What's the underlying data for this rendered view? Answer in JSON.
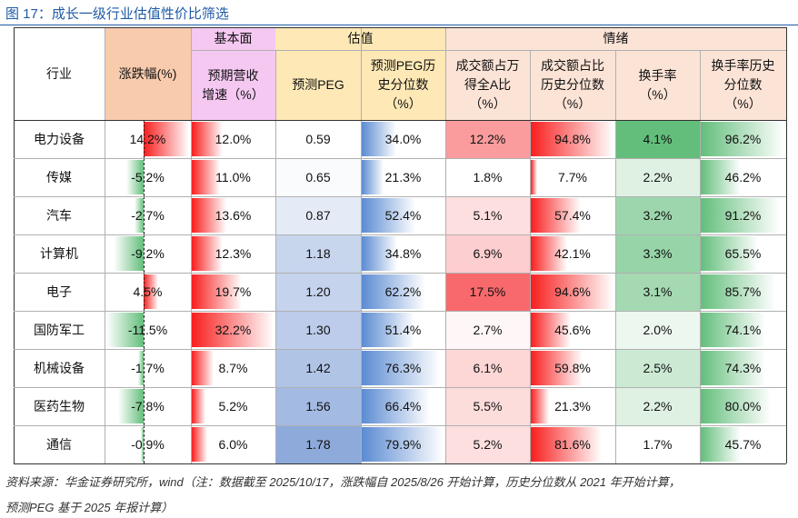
{
  "header": {
    "title": "图 17：成长一级行业估值性价比筛选"
  },
  "table": {
    "groups": [
      "基本面",
      "估值",
      "情绪"
    ],
    "columns": [
      [
        "行业"
      ],
      [
        "涨跌幅(%)"
      ],
      [
        "预期营收",
        "增速（%）"
      ],
      [
        "预测PEG"
      ],
      [
        "预测PEG历",
        "史分位数",
        "（%）"
      ],
      [
        "成交额占万",
        "得全A比",
        "（%）"
      ],
      [
        "成交额占比",
        "历史分位数",
        "（%）"
      ],
      [
        "换手率",
        "（%）"
      ],
      [
        "换手率历史",
        "分位数",
        "（%）"
      ]
    ],
    "rows": [
      [
        "电力设备",
        "14.2%",
        "12.0%",
        "0.59",
        "34.0%",
        "12.2%",
        "94.8%",
        "4.1%",
        "96.2%"
      ],
      [
        "传媒",
        "-5.2%",
        "11.0%",
        "0.65",
        "21.3%",
        "1.8%",
        "7.7%",
        "2.2%",
        "46.2%"
      ],
      [
        "汽车",
        "-2.7%",
        "13.6%",
        "0.87",
        "52.4%",
        "5.1%",
        "57.4%",
        "3.2%",
        "91.2%"
      ],
      [
        "计算机",
        "-9.2%",
        "12.3%",
        "1.18",
        "34.8%",
        "6.9%",
        "42.1%",
        "3.3%",
        "65.5%"
      ],
      [
        "电子",
        "4.5%",
        "19.7%",
        "1.20",
        "62.2%",
        "17.5%",
        "94.6%",
        "3.1%",
        "85.7%"
      ],
      [
        "国防军工",
        "-11.5%",
        "32.2%",
        "1.30",
        "51.4%",
        "2.7%",
        "45.6%",
        "2.0%",
        "74.1%"
      ],
      [
        "机械设备",
        "-1.7%",
        "8.7%",
        "1.42",
        "76.3%",
        "6.1%",
        "59.8%",
        "2.5%",
        "74.3%"
      ],
      [
        "医药生物",
        "-7.8%",
        "5.2%",
        "1.56",
        "66.4%",
        "5.5%",
        "21.3%",
        "2.2%",
        "80.0%"
      ],
      [
        "通信",
        "-0.9%",
        "6.0%",
        "1.78",
        "79.9%",
        "5.2%",
        "81.6%",
        "1.7%",
        "45.7%"
      ]
    ]
  },
  "footer": {
    "notes": [
      "资料来源：华金证券研究所，wind（注：数据截至 2025/10/17，涨跌幅自 2025/8/26 开始计算，历史分位数从 2021 年开始计算，",
      "预测PEG 基于 2025 年报计算）"
    ]
  }
}
